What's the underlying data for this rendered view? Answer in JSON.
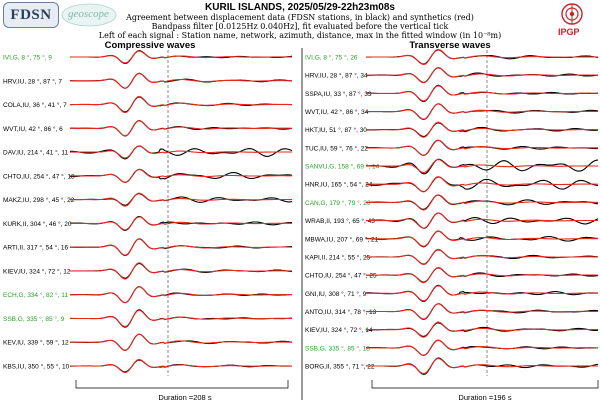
{
  "header": {
    "title": "KURIL ISLANDS, 2025/05/29-22h23m08s",
    "line1": "Agreement between displacement data (FDSN stations, in black) and synthetics (red)",
    "line2": "Bandpass filter [0.0125Hz 0.040Hz], fit evaluated before the vertical tick",
    "line3": "Left of each signal : Station name, network, azimuth, distance, max in the fitted window (in 10⁻⁸m)"
  },
  "logos": {
    "fdsn": "FDSN",
    "geoscope": "geoscope",
    "ipgp": "IPGP"
  },
  "colors": {
    "data": "#000000",
    "synthetic": "#e8281e",
    "highlight": "#2aa02a",
    "text": "#000000"
  },
  "chart_data": [
    {
      "type": "line",
      "title": "Compressive waves",
      "duration_label": "Duration =208 s",
      "series_colors": {
        "data": "black",
        "synthetics": "red"
      },
      "stations": [
        {
          "label": "IVI,G, 8 °, 75 °, 9",
          "highlight": true,
          "amp": 0.55,
          "misfit": 0.15,
          "seed": 1
        },
        {
          "label": "HRV,IU, 28 °, 87 °, 7",
          "highlight": false,
          "amp": 0.7,
          "misfit": 0.1,
          "seed": 2
        },
        {
          "label": "COLA,IU, 36 °, 41 °, 7",
          "highlight": false,
          "amp": 0.75,
          "misfit": 0.1,
          "seed": 3
        },
        {
          "label": "WVT,IU, 42 °, 86 °, 6",
          "highlight": false,
          "amp": 0.7,
          "misfit": 0.15,
          "seed": 4
        },
        {
          "label": "DAV,IU, 214 °, 41 °, 11",
          "highlight": false,
          "amp": 0.55,
          "misfit": 0.7,
          "seed": 5
        },
        {
          "label": "CHTO,IU, 254 °, 47 °, 18",
          "highlight": false,
          "amp": 0.6,
          "misfit": 0.45,
          "seed": 6
        },
        {
          "label": "MAKZ,IU, 298 °, 45 °, 22",
          "highlight": false,
          "amp": 0.6,
          "misfit": 0.35,
          "seed": 7
        },
        {
          "label": "KURK,II, 304 °, 46 °, 20",
          "highlight": false,
          "amp": 0.6,
          "misfit": 0.25,
          "seed": 8
        },
        {
          "label": "ARTI,II, 317 °, 54 °, 16",
          "highlight": false,
          "amp": 0.75,
          "misfit": 0.1,
          "seed": 9
        },
        {
          "label": "KIEV,IU, 324 °, 72 °, 12",
          "highlight": false,
          "amp": 0.75,
          "misfit": 0.1,
          "seed": 10
        },
        {
          "label": "ECH,G, 334 °, 82 °, 11",
          "highlight": true,
          "amp": 0.75,
          "misfit": 0.1,
          "seed": 11
        },
        {
          "label": "SSB,G, 335 °, 85 °, 9",
          "highlight": true,
          "amp": 0.75,
          "misfit": 0.1,
          "seed": 12
        },
        {
          "label": "KEV,IU, 339 °, 59 °, 12",
          "highlight": false,
          "amp": 0.75,
          "misfit": 0.1,
          "seed": 13
        },
        {
          "label": "KBS,IU, 350 °, 55 °, 10",
          "highlight": false,
          "amp": 0.6,
          "misfit": 0.1,
          "seed": 14
        }
      ]
    },
    {
      "type": "line",
      "title": "Transverse waves",
      "duration_label": "Duration =196 s",
      "series_colors": {
        "data": "black",
        "synthetics": "red"
      },
      "stations": [
        {
          "label": "IVI,G, 8 °, 75 °, 26",
          "highlight": true,
          "amp": 0.7,
          "misfit": 0.15,
          "seed": 21
        },
        {
          "label": "HRV,IU, 28 °, 87 °, 34",
          "highlight": false,
          "amp": 0.7,
          "misfit": 0.15,
          "seed": 22
        },
        {
          "label": "SSPA,IU, 33 °, 87 °, 33",
          "highlight": false,
          "amp": 0.7,
          "misfit": 0.15,
          "seed": 23
        },
        {
          "label": "WVT,IU, 42 °, 86 °, 34",
          "highlight": false,
          "amp": 0.7,
          "misfit": 0.15,
          "seed": 24
        },
        {
          "label": "HKT,IU, 51 °, 87 °, 30",
          "highlight": false,
          "amp": 0.7,
          "misfit": 0.15,
          "seed": 25
        },
        {
          "label": "TUC,IU, 59 °, 76 °, 22",
          "highlight": false,
          "amp": 0.7,
          "misfit": 0.2,
          "seed": 26
        },
        {
          "label": "SANVU,G, 158 °, 69 °, 14",
          "highlight": true,
          "amp": 0.6,
          "misfit": 0.9,
          "seed": 27
        },
        {
          "label": "HNR,IU, 165 °, 54 °, 24",
          "highlight": false,
          "amp": 0.7,
          "misfit": 0.6,
          "seed": 28
        },
        {
          "label": "CAN,G, 179 °, 79 °, 20",
          "highlight": true,
          "amp": 0.7,
          "misfit": 0.3,
          "seed": 29
        },
        {
          "label": "WRAB,II, 193 °, 65 °, 43",
          "highlight": false,
          "amp": 0.7,
          "misfit": 0.45,
          "seed": 30
        },
        {
          "label": "MBWA,IU, 207 °, 69 °, 21",
          "highlight": false,
          "amp": 0.7,
          "misfit": 0.3,
          "seed": 31
        },
        {
          "label": "KAPI,II, 214 °, 55 °, 25",
          "highlight": false,
          "amp": 0.7,
          "misfit": 0.15,
          "seed": 32
        },
        {
          "label": "CHTO,IU, 254 °, 47 °, 25",
          "highlight": false,
          "amp": 0.7,
          "misfit": 0.15,
          "seed": 33
        },
        {
          "label": "GNI,IU, 308 °, 71 °, 9",
          "highlight": false,
          "amp": 0.7,
          "misfit": 0.25,
          "seed": 34
        },
        {
          "label": "ANTO,IU, 314 °, 78 °, 13",
          "highlight": false,
          "amp": 0.7,
          "misfit": 0.15,
          "seed": 35
        },
        {
          "label": "KIEV,IU, 324 °, 72 °, 14",
          "highlight": false,
          "amp": 0.7,
          "misfit": 0.15,
          "seed": 36
        },
        {
          "label": "SSB,G, 335 °, 85 °, 18",
          "highlight": true,
          "amp": 0.7,
          "misfit": 0.15,
          "seed": 37
        },
        {
          "label": "BORG,II, 355 °, 71 °, 22",
          "highlight": false,
          "amp": 0.7,
          "misfit": 0.25,
          "seed": 38
        }
      ]
    }
  ]
}
